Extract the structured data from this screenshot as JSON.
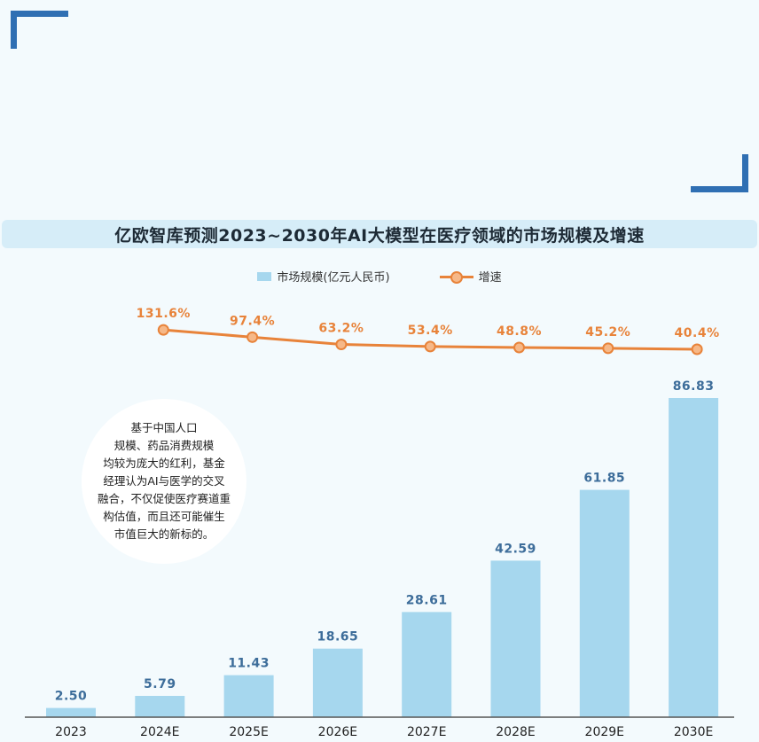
{
  "header": {
    "title": "亿欧智库预测2023~2030年AI大模型在医疗领域的市场规模及增速"
  },
  "legend": {
    "bar_label": "市场规模(亿元人民币)",
    "line_label": "增速"
  },
  "note": {
    "text": "基于中国人口\n规模、药品消费规模\n均较为庞大的红利，基金\n经理认为AI与医学的交叉\n融合，不仅促使医疗赛道重\n构估值，而且还可能催生\n市值巨大的新标的。"
  },
  "colors": {
    "bar": "#a6d7ee",
    "bar_label": "#3d6d9a",
    "line": "#e8833a",
    "marker_fill": "#f6b888",
    "axis": "#555555"
  },
  "chart_data": {
    "type": "bar",
    "categories": [
      "2023",
      "2024E",
      "2025E",
      "2026E",
      "2027E",
      "2028E",
      "2029E",
      "2030E"
    ],
    "series": [
      {
        "name": "市场规模(亿元人民币)",
        "type": "bar",
        "values": [
          2.5,
          5.79,
          11.43,
          18.65,
          28.61,
          42.59,
          61.85,
          86.83
        ],
        "labels": [
          "2.50",
          "5.79",
          "11.43",
          "18.65",
          "28.61",
          "42.59",
          "61.85",
          "86.83"
        ]
      },
      {
        "name": "增速",
        "type": "line",
        "values": [
          null,
          131.6,
          97.4,
          63.2,
          53.4,
          48.8,
          45.2,
          40.4
        ],
        "labels": [
          null,
          "131.6%",
          "97.4%",
          "63.2%",
          "53.4%",
          "48.8%",
          "45.2%",
          "40.4%"
        ]
      }
    ],
    "title": "亿欧智库预测2023~2030年AI大模型在医疗领域的市场规模及增速",
    "legend_position": "top-center",
    "grid": false
  }
}
